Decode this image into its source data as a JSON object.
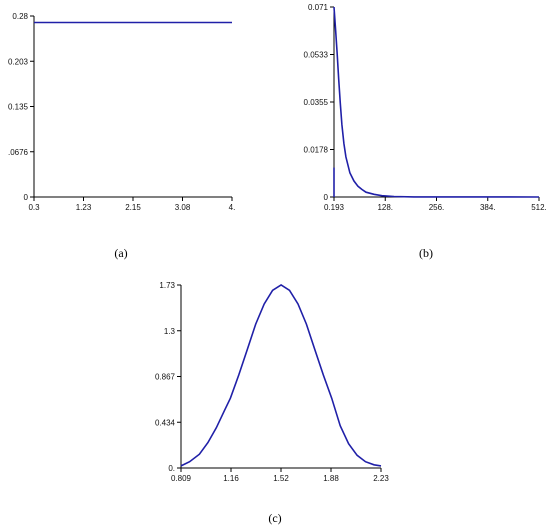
{
  "chart_data": [
    {
      "type": "line",
      "panel_label": "(a)",
      "x_ticks": [
        "0.3",
        "1.23",
        "2.15",
        "3.08",
        "4."
      ],
      "y_ticks": [
        "0",
        ".0676",
        "0.135",
        "0.203",
        "0.28"
      ],
      "xlim": [
        0.3,
        4.0
      ],
      "ylim": [
        0,
        0.28
      ],
      "series": [
        {
          "color": "#2020a8",
          "x": [
            0.3,
            4.0
          ],
          "y": [
            0.27,
            0.27
          ]
        }
      ]
    },
    {
      "type": "line",
      "panel_label": "(b)",
      "x_ticks": [
        "0.193",
        "128.",
        "256.",
        "384.",
        "512."
      ],
      "y_ticks": [
        "0",
        "0.0178",
        "0.0355",
        "0.0533",
        "0.071"
      ],
      "xlim": [
        0.193,
        512
      ],
      "ylim": [
        0,
        0.071
      ],
      "series": [
        {
          "color": "#2020a8",
          "x": [
            0.193,
            4,
            8,
            12,
            16,
            20,
            25,
            30,
            40,
            50,
            60,
            70,
            80,
            100,
            120,
            150,
            200,
            512
          ],
          "y": [
            0.071,
            0.063,
            0.054,
            0.044,
            0.035,
            0.027,
            0.02,
            0.015,
            0.009,
            0.006,
            0.004,
            0.0028,
            0.0018,
            0.001,
            0.0005,
            0.0002,
            5e-05,
            0
          ]
        },
        {
          "color": "#1e9a1e",
          "x": [
            0.193,
            0.193
          ],
          "y": [
            0,
            0.011
          ]
        }
      ]
    },
    {
      "type": "line",
      "panel_label": "(c)",
      "x_ticks": [
        "0.809",
        "1.16",
        "1.52",
        "1.88",
        "2.23"
      ],
      "y_ticks": [
        "0.",
        "0.434",
        "0.867",
        "1.3",
        "1.73"
      ],
      "xlim": [
        0.809,
        2.23
      ],
      "ylim": [
        0,
        1.73
      ],
      "series": [
        {
          "color": "#2020a8",
          "x": [
            0.809,
            0.87,
            0.94,
            1.0,
            1.06,
            1.12,
            1.16,
            1.22,
            1.28,
            1.34,
            1.4,
            1.46,
            1.52,
            1.58,
            1.64,
            1.7,
            1.76,
            1.82,
            1.88,
            1.94,
            2.0,
            2.06,
            2.12,
            2.18,
            2.23
          ],
          "y": [
            0.02,
            0.06,
            0.13,
            0.24,
            0.38,
            0.55,
            0.66,
            0.88,
            1.12,
            1.36,
            1.55,
            1.68,
            1.73,
            1.68,
            1.55,
            1.36,
            1.12,
            0.88,
            0.66,
            0.4,
            0.23,
            0.12,
            0.06,
            0.03,
            0.02
          ]
        }
      ]
    }
  ]
}
